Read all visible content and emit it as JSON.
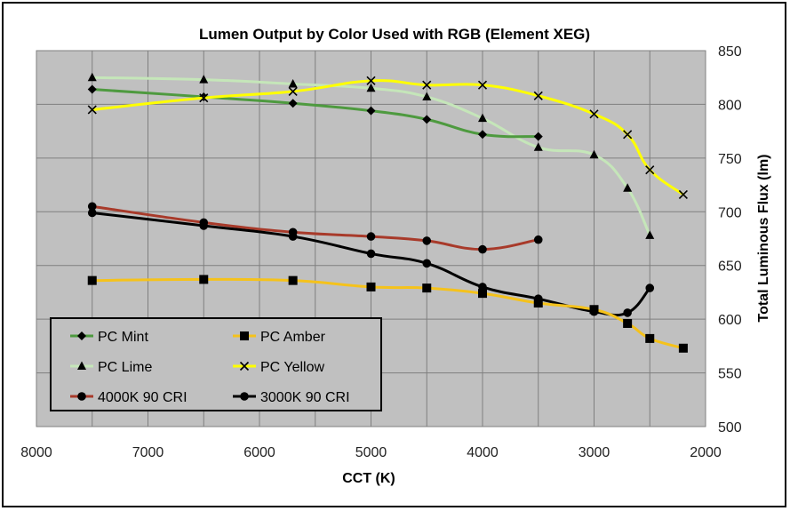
{
  "chart_data": {
    "type": "line",
    "title": "Lumen Output by Color Used with RGB (Element XEG)",
    "xlabel": "CCT (K)",
    "ylabel": "Total Luminous Flux (lm)",
    "xlim": [
      8000,
      2000
    ],
    "ylim": [
      500,
      850
    ],
    "x_ticks": [
      "8000",
      "7000",
      "6000",
      "5000",
      "4000",
      "3000",
      "2000"
    ],
    "y_ticks": [
      "500",
      "550",
      "600",
      "650",
      "700",
      "750",
      "800",
      "850"
    ],
    "x_reversed": true,
    "grid": "both",
    "background": "#c0c0c0",
    "legend": "bottom-left",
    "series": [
      {
        "name": "PC Mint",
        "color": "#4e9a3f",
        "marker": "diamond",
        "x": [
          7500,
          6500,
          5700,
          5000,
          4500,
          4000,
          3500
        ],
        "y": [
          814,
          807,
          801,
          794,
          786,
          772,
          770
        ]
      },
      {
        "name": "PC Amber",
        "color": "#f5c21b",
        "marker": "square",
        "x": [
          7500,
          6500,
          5700,
          5000,
          4500,
          4000,
          3500,
          3000,
          2700,
          2500,
          2200
        ],
        "y": [
          636,
          637,
          636,
          630,
          629,
          624,
          615,
          609,
          596,
          582,
          573
        ]
      },
      {
        "name": "PC Lime",
        "color": "#c5e6b9",
        "marker": "triangle",
        "x": [
          7500,
          6500,
          5700,
          5000,
          4500,
          4000,
          3500,
          3000,
          2700,
          2500
        ],
        "y": [
          825,
          823,
          819,
          815,
          807,
          787,
          760,
          753,
          722,
          678
        ]
      },
      {
        "name": "PC Yellow",
        "color": "#ffff00",
        "marker": "x",
        "x": [
          7500,
          6500,
          5700,
          5000,
          4500,
          4000,
          3500,
          3000,
          2700,
          2500,
          2200
        ],
        "y": [
          795,
          806,
          812,
          822,
          818,
          818,
          808,
          791,
          772,
          739,
          716
        ]
      },
      {
        "name": "4000K 90 CRI",
        "color": "#a83a2a",
        "marker": "circle",
        "x": [
          7500,
          6500,
          5700,
          5000,
          4500,
          4000,
          3500
        ],
        "y": [
          705,
          690,
          681,
          677,
          673,
          665,
          674
        ]
      },
      {
        "name": "3000K 90 CRI",
        "color": "#000000",
        "marker": "circle",
        "x": [
          7500,
          6500,
          5700,
          5000,
          4500,
          4000,
          3500,
          3000,
          2700,
          2500
        ],
        "y": [
          699,
          687,
          677,
          661,
          652,
          630,
          619,
          607,
          606,
          629
        ]
      }
    ]
  }
}
